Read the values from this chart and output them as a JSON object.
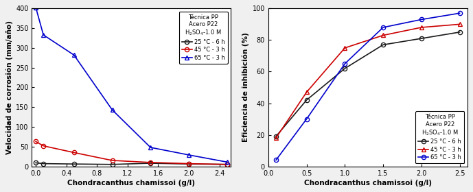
{
  "left_plot": {
    "xlabel": "Chondracanthus chamissoi (g/l)",
    "ylabel": "Velocidad de corrosión (mm/año)",
    "xlim": [
      -0.05,
      2.55
    ],
    "ylim": [
      0,
      400
    ],
    "yticks": [
      0,
      50,
      100,
      150,
      200,
      250,
      300,
      350,
      400
    ],
    "xticks": [
      0.0,
      0.4,
      0.8,
      1.2,
      1.6,
      2.0,
      2.4
    ],
    "series": [
      {
        "label": "25 °C - 6 h",
        "color": "#1a1a1a",
        "marker": "o",
        "markersize": 4.5,
        "linestyle": "-",
        "x": [
          0.0,
          0.1,
          0.5,
          1.0,
          1.5,
          2.0,
          2.5
        ],
        "y": [
          9,
          7,
          6,
          5,
          8,
          6,
          5
        ]
      },
      {
        "label": "45 °C - 3 h",
        "color": "#cc0000",
        "marker": "o",
        "markersize": 4.5,
        "linestyle": "-",
        "x": [
          0.0,
          0.1,
          0.5,
          1.0,
          1.5,
          2.0,
          2.5
        ],
        "y": [
          63,
          52,
          35,
          15,
          10,
          7,
          5
        ]
      },
      {
        "label": "65 °C - 3 h",
        "color": "#0000cc",
        "marker": "^",
        "markersize": 4.5,
        "linestyle": "-",
        "x": [
          0.0,
          0.1,
          0.5,
          1.0,
          1.5,
          2.0,
          2.5
        ],
        "y": [
          403,
          333,
          282,
          143,
          48,
          29,
          11
        ]
      }
    ],
    "legend_loc": "upper right",
    "legend_bbox": null
  },
  "right_plot": {
    "xlabel": "Chondracanthus chamissoi (g/l)",
    "ylabel": "Eficiencia de inhibición (%)",
    "xlim": [
      0.0,
      2.6
    ],
    "ylim": [
      0,
      100
    ],
    "yticks": [
      0,
      20,
      40,
      60,
      80,
      100
    ],
    "xticks": [
      0.0,
      0.5,
      1.0,
      1.5,
      2.0,
      2.5
    ],
    "series": [
      {
        "label": "25 °C - 6 h",
        "color": "#1a1a1a",
        "marker": "o",
        "markersize": 4.5,
        "linestyle": "-",
        "x": [
          0.1,
          0.5,
          1.0,
          1.5,
          2.0,
          2.5
        ],
        "y": [
          19,
          42,
          62,
          77,
          81,
          85
        ]
      },
      {
        "label": "45 °C - 3 h",
        "color": "#cc0000",
        "marker": "^",
        "markersize": 4.5,
        "linestyle": "-",
        "x": [
          0.1,
          0.5,
          1.0,
          1.5,
          2.0,
          2.5
        ],
        "y": [
          18,
          47,
          75,
          83,
          88,
          90
        ]
      },
      {
        "label": "65 °C - 3 h",
        "color": "#0000cc",
        "marker": "o",
        "markersize": 4.5,
        "linestyle": "-",
        "x": [
          0.1,
          0.5,
          1.0,
          1.5,
          2.0,
          2.5
        ],
        "y": [
          4,
          30,
          65,
          88,
          93,
          97
        ]
      }
    ],
    "legend_loc": "lower right",
    "legend_bbox": null
  },
  "legend_title_lines": "Técnica PP\nAcero P22\nH$_2$SO$_4$-1.0 M",
  "legend_labels": [
    "25 °C - 6 h",
    "45 °C - 3 h",
    "65 °C - 3 h"
  ],
  "fig_facecolor": "#f0f0f0",
  "axes_facecolor": "#ffffff",
  "spine_color": "#000000",
  "tick_labelsize": 7.0,
  "xlabel_fontsize": 7.5,
  "ylabel_fontsize": 7.5,
  "legend_fontsize": 6.0,
  "legend_title_fontsize": 6.0,
  "linewidth": 1.2
}
